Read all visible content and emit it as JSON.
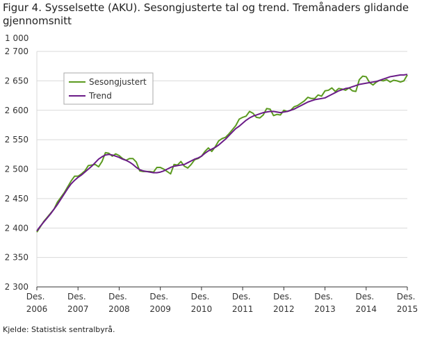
{
  "chart_data": {
    "type": "line",
    "title": "Figur 4. Sysselsette (AKU).  Sesongjusterte tal og trend. Tremånaders glidande gjennomsnitt",
    "y_unit": "1 000",
    "source": "Kjelde: Statistisk sentralbyrå.",
    "categories": [
      "Des. 2006",
      null,
      null,
      null,
      null,
      null,
      null,
      null,
      null,
      null,
      null,
      null,
      "Des. 2007",
      null,
      null,
      null,
      null,
      null,
      null,
      null,
      null,
      null,
      null,
      null,
      "Des. 2008",
      null,
      null,
      null,
      null,
      null,
      null,
      null,
      null,
      null,
      null,
      null,
      "Des. 2009",
      null,
      null,
      null,
      null,
      null,
      null,
      null,
      null,
      null,
      null,
      null,
      "Des. 2010",
      null,
      null,
      null,
      null,
      null,
      null,
      null,
      null,
      null,
      null,
      null,
      "Des. 2011",
      null,
      null,
      null,
      null,
      null,
      null,
      null,
      null,
      null,
      null,
      null,
      "Des. 2012",
      null,
      null,
      null,
      null,
      null,
      null,
      null,
      null,
      null,
      null,
      null,
      "Des. 2013",
      null,
      null,
      null,
      null,
      null,
      null,
      null,
      null,
      null,
      null,
      null,
      "Des. 2014",
      null,
      null,
      null,
      null,
      null,
      null,
      null,
      null,
      null,
      null,
      null,
      "Des. 2015"
    ],
    "series": [
      {
        "name": "Sesongjustert",
        "color": "#5b9a1f",
        "values": [
          2393,
          2402,
          2411,
          2418,
          2425,
          2432,
          2444,
          2452,
          2460,
          2470,
          2480,
          2488,
          2488,
          2492,
          2497,
          2506,
          2507,
          2508,
          2504,
          2513,
          2528,
          2527,
          2522,
          2526,
          2523,
          2518,
          2515,
          2518,
          2518,
          2512,
          2497,
          2496,
          2496,
          2496,
          2495,
          2503,
          2503,
          2500,
          2496,
          2492,
          2508,
          2507,
          2513,
          2505,
          2502,
          2508,
          2516,
          2518,
          2522,
          2530,
          2536,
          2530,
          2538,
          2548,
          2552,
          2554,
          2560,
          2567,
          2574,
          2585,
          2588,
          2590,
          2598,
          2595,
          2588,
          2587,
          2592,
          2603,
          2602,
          2591,
          2593,
          2592,
          2600,
          2598,
          2600,
          2606,
          2608,
          2612,
          2616,
          2622,
          2620,
          2620,
          2626,
          2624,
          2633,
          2634,
          2638,
          2632,
          2637,
          2636,
          2634,
          2638,
          2633,
          2632,
          2652,
          2658,
          2657,
          2647,
          2643,
          2648,
          2651,
          2650,
          2652,
          2648,
          2651,
          2650,
          2648,
          2650,
          2660
        ]
      },
      {
        "name": "Trend",
        "color": "#6a1b87",
        "values": [
          2395,
          2403,
          2410,
          2417,
          2424,
          2432,
          2440,
          2449,
          2458,
          2467,
          2475,
          2481,
          2486,
          2490,
          2495,
          2500,
          2505,
          2511,
          2517,
          2521,
          2524,
          2525,
          2524,
          2522,
          2520,
          2517,
          2515,
          2512,
          2508,
          2503,
          2499,
          2497,
          2496,
          2495,
          2494,
          2494,
          2495,
          2497,
          2500,
          2503,
          2505,
          2506,
          2507,
          2508,
          2511,
          2514,
          2517,
          2519,
          2522,
          2527,
          2531,
          2534,
          2537,
          2541,
          2546,
          2551,
          2557,
          2563,
          2569,
          2573,
          2578,
          2583,
          2587,
          2590,
          2592,
          2594,
          2596,
          2597,
          2598,
          2598,
          2597,
          2596,
          2597,
          2598,
          2600,
          2602,
          2605,
          2608,
          2611,
          2614,
          2616,
          2618,
          2619,
          2620,
          2621,
          2624,
          2627,
          2630,
          2633,
          2635,
          2637,
          2638,
          2640,
          2642,
          2644,
          2645,
          2646,
          2647,
          2648,
          2649,
          2651,
          2653,
          2655,
          2657,
          2658,
          2659,
          2660,
          2660,
          2661
        ]
      }
    ],
    "ylim": [
      2300,
      2700
    ],
    "yticks": [
      {
        "value": 2300,
        "label": "2 300"
      },
      {
        "value": 2350,
        "label": "2 350"
      },
      {
        "value": 2400,
        "label": "2 400"
      },
      {
        "value": 2450,
        "label": "2 450"
      },
      {
        "value": 2500,
        "label": "2 500"
      },
      {
        "value": 2550,
        "label": "2 550"
      },
      {
        "value": 2600,
        "label": "2 600"
      },
      {
        "value": 2650,
        "label": "2 650"
      },
      {
        "value": 2700,
        "label": "2 700"
      }
    ],
    "grid": true,
    "legend": "top-left"
  }
}
